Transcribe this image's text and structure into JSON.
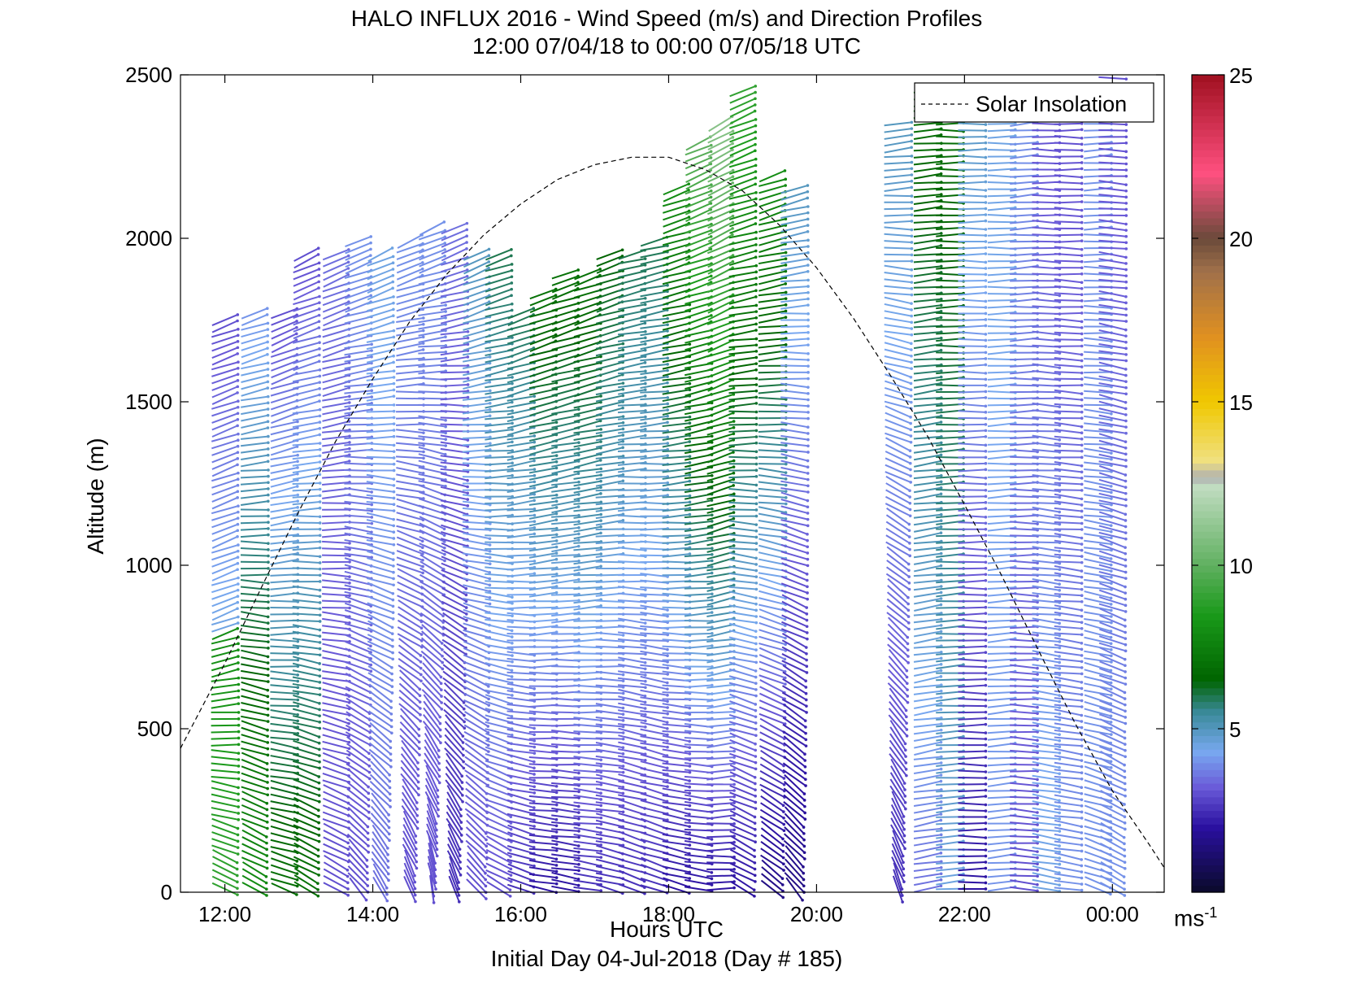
{
  "chart_data": {
    "type": "wind-barb-profile",
    "title": "HALO INFLUX 2016 - Wind Speed (m/s) and Direction Profiles",
    "subtitle": "12:00 07/04/18 to 00:00 07/05/18  UTC",
    "xlabel": "Hours UTC",
    "xsublabel": "Initial Day 04-Jul-2018 (Day # 185)",
    "ylabel": "Altitude (m)",
    "xlim": [
      11.4,
      24.7
    ],
    "ylim": [
      0,
      2500
    ],
    "x_ticks": [
      {
        "v": 12,
        "label": "12:00"
      },
      {
        "v": 14,
        "label": "14:00"
      },
      {
        "v": 16,
        "label": "16:00"
      },
      {
        "v": 18,
        "label": "18:00"
      },
      {
        "v": 20,
        "label": "20:00"
      },
      {
        "v": 22,
        "label": "22:00"
      },
      {
        "v": 24,
        "label": "00:00"
      }
    ],
    "y_ticks": [
      0,
      500,
      1000,
      1500,
      2000,
      2500
    ],
    "legend": {
      "entries": [
        "Solar Insolation"
      ],
      "placement": "top-right"
    },
    "colorbar": {
      "range": [
        0,
        25
      ],
      "ticks": [
        5,
        10,
        15,
        20,
        25
      ],
      "unit": "ms",
      "unit_exp": "-1",
      "stops": [
        {
          "v": 0,
          "c": "#0a0a2a"
        },
        {
          "v": 2,
          "c": "#2a10a0"
        },
        {
          "v": 3.2,
          "c": "#6a5ad8"
        },
        {
          "v": 4.3,
          "c": "#78a8f0"
        },
        {
          "v": 5.5,
          "c": "#3a8a9a"
        },
        {
          "v": 6.5,
          "c": "#006400"
        },
        {
          "v": 8.5,
          "c": "#1a9a1a"
        },
        {
          "v": 10,
          "c": "#60b060"
        },
        {
          "v": 12.4,
          "c": "#c0dcc0"
        },
        {
          "v": 12.7,
          "c": "#b0b0b0"
        },
        {
          "v": 13.2,
          "c": "#f0e080"
        },
        {
          "v": 15,
          "c": "#f0c800"
        },
        {
          "v": 17,
          "c": "#e09020"
        },
        {
          "v": 19,
          "c": "#a0704a"
        },
        {
          "v": 20,
          "c": "#6a4a3a"
        },
        {
          "v": 22,
          "c": "#ff5080"
        },
        {
          "v": 25,
          "c": "#a01020"
        }
      ]
    },
    "solar_insolation": {
      "x": [
        11.4,
        12.0,
        12.5,
        13.0,
        13.5,
        14.0,
        14.5,
        15.0,
        15.5,
        16.0,
        16.5,
        17.0,
        17.5,
        18.0,
        18.5,
        19.0,
        19.5,
        20.0,
        20.5,
        21.0,
        21.5,
        22.0,
        22.5,
        23.0,
        23.5,
        24.0,
        24.5,
        24.7
      ],
      "y": [
        440,
        700,
        935,
        1165,
        1380,
        1570,
        1745,
        1890,
        2010,
        2105,
        2180,
        2225,
        2248,
        2248,
        2210,
        2145,
        2040,
        1910,
        1755,
        1580,
        1395,
        1185,
        970,
        740,
        515,
        310,
        145,
        75
      ]
    },
    "profiles": [
      {
        "t": 12.0,
        "altitudes": [
          0,
          800
        ],
        "dir": 300,
        "speed": 9,
        "dir_top": 250,
        "speed_top": 8
      },
      {
        "t": 12.0,
        "altitudes": [
          800,
          1750
        ],
        "dir": 250,
        "speed": 4.5,
        "dir_top": 250,
        "speed_top": 3
      },
      {
        "t": 12.4,
        "altitudes": [
          0,
          1780
        ],
        "dir": 300,
        "speed": 8,
        "dir_top": 250,
        "speed_top": 4
      },
      {
        "t": 12.8,
        "altitudes": [
          0,
          1780
        ],
        "dir": 290,
        "speed": 7,
        "dir_top": 245,
        "speed_top": 3
      },
      {
        "t": 13.1,
        "altitudes": [
          0,
          1950
        ],
        "dir": 300,
        "speed": 7,
        "dir_top": 245,
        "speed_top": 3
      },
      {
        "t": 13.5,
        "altitudes": [
          0,
          1950
        ],
        "dir": 300,
        "speed": 3,
        "dir_top": 245,
        "speed_top": 3.5
      },
      {
        "t": 13.8,
        "altitudes": [
          0,
          2000
        ],
        "dir": 320,
        "speed": 3,
        "dir_top": 245,
        "speed_top": 4
      },
      {
        "t": 14.1,
        "altitudes": [
          0,
          1950
        ],
        "dir": 330,
        "speed": 3.5,
        "dir_top": 245,
        "speed_top": 4.5
      },
      {
        "t": 14.5,
        "altitudes": [
          0,
          2000
        ],
        "dir": 340,
        "speed": 3,
        "dir_top": 245,
        "speed_top": 4
      },
      {
        "t": 14.8,
        "altitudes": [
          0,
          2040
        ],
        "dir": 350,
        "speed": 3,
        "dir_top": 245,
        "speed_top": 4
      },
      {
        "t": 15.1,
        "altitudes": [
          0,
          2040
        ],
        "dir": 340,
        "speed": 2.5,
        "dir_top": 245,
        "speed_top": 3.5
      },
      {
        "t": 15.4,
        "altitudes": [
          0,
          1950
        ],
        "dir": 320,
        "speed": 3,
        "dir_top": 245,
        "speed_top": 5
      },
      {
        "t": 15.7,
        "altitudes": [
          0,
          1950
        ],
        "dir": 300,
        "speed": 3,
        "dir_top": 250,
        "speed_top": 6
      },
      {
        "t": 16.0,
        "altitudes": [
          0,
          1780
        ],
        "dir": 290,
        "speed": 2.5,
        "dir_top": 250,
        "speed_top": 6
      },
      {
        "t": 16.3,
        "altitudes": [
          0,
          1830
        ],
        "dir": 280,
        "speed": 2,
        "dir_top": 250,
        "speed_top": 7
      },
      {
        "t": 16.6,
        "altitudes": [
          0,
          1900
        ],
        "dir": 280,
        "speed": 2,
        "dir_top": 250,
        "speed_top": 7
      },
      {
        "t": 16.9,
        "altitudes": [
          0,
          1900
        ],
        "dir": 280,
        "speed": 2.5,
        "dir_top": 250,
        "speed_top": 7
      },
      {
        "t": 17.2,
        "altitudes": [
          0,
          1950
        ],
        "dir": 285,
        "speed": 2.5,
        "dir_top": 250,
        "speed_top": 6.5
      },
      {
        "t": 17.5,
        "altitudes": [
          0,
          1950
        ],
        "dir": 290,
        "speed": 2.5,
        "dir_top": 255,
        "speed_top": 6
      },
      {
        "t": 17.8,
        "altitudes": [
          0,
          2000
        ],
        "dir": 290,
        "speed": 2.5,
        "dir_top": 255,
        "speed_top": 6
      },
      {
        "t": 18.1,
        "altitudes": [
          0,
          2150
        ],
        "dir": 285,
        "speed": 2,
        "dir_top": 250,
        "speed_top": 8
      },
      {
        "t": 18.4,
        "altitudes": [
          0,
          2300
        ],
        "dir": 280,
        "speed": 2,
        "dir_top": 245,
        "speed_top": 10
      },
      {
        "t": 18.7,
        "altitudes": [
          0,
          2350
        ],
        "dir": 270,
        "speed": 2,
        "dir_top": 240,
        "speed_top": 11
      },
      {
        "t": 19.0,
        "altitudes": [
          0,
          2450
        ],
        "dir": 300,
        "speed": 2,
        "dir_top": 245,
        "speed_top": 9
      },
      {
        "t": 19.4,
        "altitudes": [
          0,
          2200
        ],
        "dir": 310,
        "speed": 1.5,
        "dir_top": 250,
        "speed_top": 8
      },
      {
        "t": 19.7,
        "altitudes": [
          0,
          2150
        ],
        "dir": 320,
        "speed": 1.5,
        "dir_top": 255,
        "speed_top": 5
      },
      {
        "t": 21.1,
        "altitudes": [
          0,
          2350
        ],
        "dir": 340,
        "speed": 2.5,
        "dir_top": 260,
        "speed_top": 5
      },
      {
        "t": 21.5,
        "altitudes": [
          0,
          2450
        ],
        "dir": 260,
        "speed": 3.5,
        "dir_top": 265,
        "speed_top": 7
      },
      {
        "t": 21.8,
        "altitudes": [
          0,
          2450
        ],
        "dir": 265,
        "speed": 4.5,
        "dir_top": 270,
        "speed_top": 7
      },
      {
        "t": 22.1,
        "altitudes": [
          0,
          2450
        ],
        "dir": 270,
        "speed": 2,
        "dir_top": 270,
        "speed_top": 5
      },
      {
        "t": 22.5,
        "altitudes": [
          0,
          2450
        ],
        "dir": 265,
        "speed": 4,
        "dir_top": 270,
        "speed_top": 4.5
      },
      {
        "t": 22.8,
        "altitudes": [
          0,
          2400
        ],
        "dir": 275,
        "speed": 3,
        "dir_top": 265,
        "speed_top": 4
      },
      {
        "t": 23.1,
        "altitudes": [
          0,
          2450
        ],
        "dir": 280,
        "speed": 4.5,
        "dir_top": 270,
        "speed_top": 3
      },
      {
        "t": 23.4,
        "altitudes": [
          0,
          2400
        ],
        "dir": 280,
        "speed": 4,
        "dir_top": 270,
        "speed_top": 3
      },
      {
        "t": 23.8,
        "altitudes": [
          0,
          2400
        ],
        "dir": 290,
        "speed": 4,
        "dir_top": 265,
        "speed_top": 4
      },
      {
        "t": 24.0,
        "altitudes": [
          0,
          2500
        ],
        "dir": 300,
        "speed": 4,
        "dir_top": 270,
        "speed_top": 3
      }
    ]
  }
}
